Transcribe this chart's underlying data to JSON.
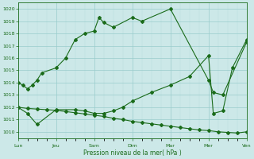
{
  "xlabel": "Pression niveau de la mer( hPa )",
  "background_color": "#cce8e8",
  "line_color": "#1a6b1a",
  "grid_color_major": "#99cccc",
  "grid_color_minor": "#b8dddd",
  "ylim": [
    1009.5,
    1020.5
  ],
  "xlim": [
    0,
    48
  ],
  "xtick_labels": [
    "Lun",
    "Jeu",
    "Sam",
    "Dim",
    "Mar",
    "Mer",
    "Ven"
  ],
  "xtick_positions": [
    0,
    8,
    16,
    24,
    32,
    40,
    48
  ],
  "ytick_values": [
    1010,
    1011,
    1012,
    1013,
    1014,
    1015,
    1016,
    1017,
    1018,
    1019,
    1020
  ],
  "line1_x": [
    0,
    1,
    2,
    3,
    4,
    5,
    8,
    10,
    12,
    14,
    16,
    17,
    18,
    20,
    24,
    26,
    32,
    40,
    41,
    43,
    48
  ],
  "line1_y": [
    1014.0,
    1013.8,
    1013.5,
    1013.8,
    1014.2,
    1014.8,
    1015.2,
    1016.0,
    1017.5,
    1018.0,
    1018.2,
    1019.3,
    1018.9,
    1018.5,
    1019.3,
    1019.0,
    1020.0,
    1014.2,
    1013.2,
    1013.0,
    1017.3
  ],
  "line2_x": [
    0,
    2,
    4,
    6,
    8,
    10,
    12,
    14,
    16,
    18,
    20,
    22,
    24,
    26,
    28,
    30,
    32,
    34,
    36,
    38,
    40,
    42,
    44,
    46,
    48
  ],
  "line2_y": [
    1012.0,
    1011.9,
    1011.85,
    1011.8,
    1011.75,
    1011.65,
    1011.55,
    1011.45,
    1011.35,
    1011.25,
    1011.1,
    1011.0,
    1010.85,
    1010.75,
    1010.65,
    1010.55,
    1010.45,
    1010.35,
    1010.25,
    1010.15,
    1010.1,
    1010.0,
    1009.95,
    1009.9,
    1010.0
  ],
  "line3_x": [
    0,
    2,
    4,
    8,
    12,
    14,
    16,
    18,
    20,
    22,
    24,
    28,
    32,
    36,
    40,
    41,
    43,
    45,
    48
  ],
  "line3_y": [
    1012.0,
    1011.5,
    1010.6,
    1011.8,
    1011.8,
    1011.7,
    1011.5,
    1011.5,
    1011.7,
    1012.0,
    1012.5,
    1013.2,
    1013.8,
    1014.5,
    1016.2,
    1011.5,
    1011.7,
    1015.2,
    1017.5
  ]
}
